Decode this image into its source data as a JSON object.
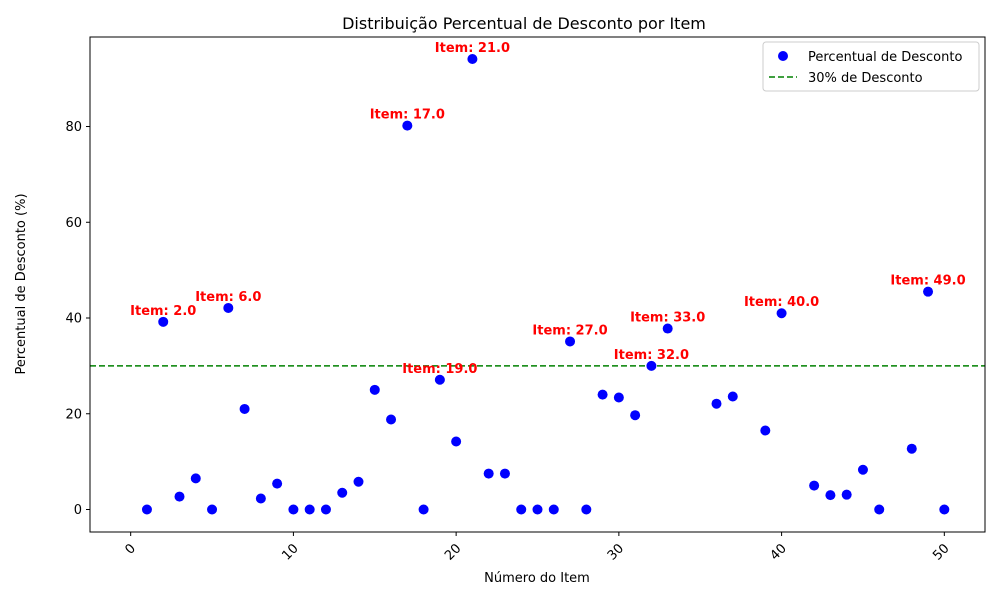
{
  "chart_data": {
    "type": "scatter",
    "title": "Distribuição Percentual de Desconto por Item",
    "xlabel": "Número do Item",
    "ylabel": "Percentual de Desconto (%)",
    "xlim": [
      -2.5,
      52.5
    ],
    "ylim": [
      -4.7,
      98.7
    ],
    "xticks": [
      0,
      10,
      20,
      30,
      40,
      50
    ],
    "yticks": [
      0,
      20,
      40,
      60,
      80
    ],
    "grid": false,
    "legend_position": "top-right",
    "series": [
      {
        "name": "Percentual de Desconto",
        "color": "#0000ff",
        "marker": "circle",
        "points": [
          [
            1,
            0
          ],
          [
            2,
            39.2
          ],
          [
            3,
            2.7
          ],
          [
            4,
            6.5
          ],
          [
            5,
            0
          ],
          [
            6,
            42.1
          ],
          [
            7,
            21.0
          ],
          [
            8,
            2.3
          ],
          [
            9,
            5.4
          ],
          [
            10,
            0
          ],
          [
            11,
            0
          ],
          [
            12,
            0
          ],
          [
            13,
            3.5
          ],
          [
            14,
            5.8
          ],
          [
            15,
            25.0
          ],
          [
            16,
            18.8
          ],
          [
            17,
            80.2
          ],
          [
            18,
            0
          ],
          [
            19,
            27.1
          ],
          [
            20,
            14.2
          ],
          [
            21,
            94.1
          ],
          [
            22,
            7.5
          ],
          [
            23,
            7.5
          ],
          [
            24,
            0
          ],
          [
            25,
            0
          ],
          [
            26,
            0
          ],
          [
            27,
            35.1
          ],
          [
            28,
            0
          ],
          [
            29,
            24.0
          ],
          [
            30,
            23.4
          ],
          [
            31,
            19.7
          ],
          [
            32,
            30.0
          ],
          [
            33,
            37.8
          ],
          [
            36,
            22.1
          ],
          [
            37,
            23.6
          ],
          [
            39,
            16.5
          ],
          [
            40,
            41.0
          ],
          [
            42,
            5.0
          ],
          [
            43,
            3.0
          ],
          [
            44,
            3.1
          ],
          [
            45,
            8.3
          ],
          [
            46,
            0
          ],
          [
            48,
            12.7
          ],
          [
            49,
            45.5
          ],
          [
            50,
            0
          ]
        ]
      }
    ],
    "reference_line": {
      "name": "30% de Desconto",
      "y": 30,
      "color": "#008000",
      "style": "dashed"
    },
    "annotations": [
      {
        "x": 2,
        "y": 39.2,
        "text": "Item: 2.0",
        "color": "#ff0000"
      },
      {
        "x": 6,
        "y": 42.1,
        "text": "Item: 6.0",
        "color": "#ff0000"
      },
      {
        "x": 17,
        "y": 80.2,
        "text": "Item: 17.0",
        "color": "#ff0000"
      },
      {
        "x": 19,
        "y": 27.1,
        "text": "Item: 19.0",
        "color": "#ff0000"
      },
      {
        "x": 21,
        "y": 94.1,
        "text": "Item: 21.0",
        "color": "#ff0000"
      },
      {
        "x": 27,
        "y": 35.1,
        "text": "Item: 27.0",
        "color": "#ff0000"
      },
      {
        "x": 32,
        "y": 30.0,
        "text": "Item: 32.0",
        "color": "#ff0000"
      },
      {
        "x": 33,
        "y": 37.8,
        "text": "Item: 33.0",
        "color": "#ff0000"
      },
      {
        "x": 40,
        "y": 41.0,
        "text": "Item: 40.0",
        "color": "#ff0000"
      },
      {
        "x": 49,
        "y": 45.5,
        "text": "Item: 49.0",
        "color": "#ff0000"
      }
    ]
  }
}
